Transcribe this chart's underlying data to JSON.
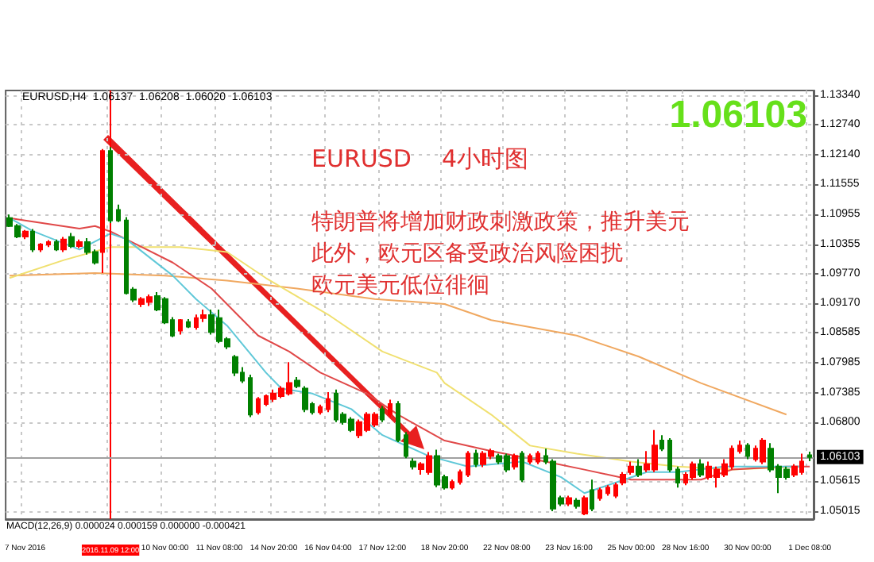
{
  "chart_data": {
    "type": "candlestick",
    "annotations": [
      "EURUSD,H4  1.06137  1.06208  1.06020  1.06103",
      "1.06103",
      "EURUSD    4小时图",
      "特朗普将增加财政刺激政策，推升美元",
      "此外，欧元区备受政治风险困扰",
      "欧元美元低位徘徊",
      "MACD(12,26,9) 0.000024 0.000159 0.000000 -0.000421"
    ],
    "categories": [
      null,
      null,
      "7 Nov 2016",
      null,
      null,
      null,
      null,
      null,
      null,
      null,
      null,
      null,
      null,
      "2016.11.09 12:00",
      null,
      null,
      null,
      null,
      null,
      null,
      "10 Nov 00:00",
      null,
      null,
      null,
      null,
      null,
      null,
      "11 Nov 08:00",
      null,
      null,
      null,
      null,
      null,
      null,
      "14 Nov 20:00",
      null,
      null,
      null,
      null,
      null,
      null,
      "16 Nov 04:00",
      null,
      null,
      null,
      null,
      null,
      null,
      "17 Nov 12:00",
      null,
      null,
      null,
      null,
      null,
      null,
      null,
      "18 Nov 20:00",
      null,
      null,
      null,
      null,
      null,
      null,
      null,
      "22 Nov 08:00",
      null,
      null,
      null,
      null,
      null,
      null,
      null,
      "23 Nov 16:00",
      null,
      null,
      null,
      null,
      null,
      null,
      null,
      "25 Nov 00:00",
      null,
      null,
      null,
      null,
      null,
      null,
      "28 Nov 16:00",
      null,
      null,
      null,
      null,
      null,
      null,
      null,
      "30 Nov 00:00",
      null,
      null,
      null,
      null,
      null,
      null,
      null,
      "1 Dec 08:00"
    ],
    "colors": [
      "#008000",
      "#008000",
      "#ff0000",
      "#008000",
      "#ff0000",
      "#ff0000",
      "#008000",
      "#ff0000",
      "#008000",
      "#ff0000",
      "#008000",
      "#008000",
      "#ff0000",
      "#008000",
      "#008000",
      "#008000",
      "#008000",
      "#ff0000",
      "#ff0000",
      "#008000",
      "#008000",
      "#008000",
      "#ff0000",
      "#008000",
      "#ff0000",
      "#ff0000",
      "#008000",
      "#008000",
      "#008000",
      "#008000",
      "#008000",
      "#008000",
      "#ff0000",
      "#ff0000",
      "#ff0000",
      "#ff0000",
      "#ff0000",
      "#008000",
      "#008000",
      "#008000",
      "#ff0000",
      "#ff0000",
      "#008000",
      "#008000",
      "#008000",
      "#ff0000",
      "#ff0000",
      "#ff0000",
      "#008000",
      "#ff0000",
      "#008000",
      "#008000",
      "#008000",
      "#ff0000",
      "#ff0000",
      "#008000",
      "#008000",
      "#ff0000",
      "#ff0000",
      "#ff0000",
      "#008000",
      "#ff0000",
      "#ff0000",
      "#008000",
      "#008000",
      "#ff0000",
      "#008000",
      "#ff0000",
      "#ff0000",
      "#008000",
      "#008000",
      "#008000",
      "#ff0000",
      "#008000",
      "#ff0000",
      "#008000",
      "#ff0000",
      "#ff0000",
      "#ff0000",
      "#ff0000",
      "#ff0000",
      "#008000",
      "#ff0000",
      "#ff0000",
      "#008000",
      "#008000",
      "#008000",
      "#ff0000",
      "#ff0000",
      "#008000",
      "#ff0000",
      "#ff0000",
      "#ff0000",
      "#ff0000",
      "#ff0000",
      "#008000",
      "#ff0000",
      "#ff0000",
      "#008000",
      "#008000",
      "#008000",
      "#ff0000",
      "#ff0000",
      "#008000"
    ],
    "ohlc": [
      [
        1.1088,
        1.1095,
        1.107,
        1.1072
      ],
      [
        1.1072,
        1.1076,
        1.1048,
        1.1051
      ],
      [
        1.1051,
        1.1064,
        1.1046,
        1.1061
      ],
      [
        1.1061,
        1.1066,
        1.102,
        1.1025
      ],
      [
        1.1025,
        1.1038,
        1.102,
        1.1035
      ],
      [
        1.1035,
        1.1044,
        1.103,
        1.104
      ],
      [
        1.104,
        1.1045,
        1.1022,
        1.1025
      ],
      [
        1.1025,
        1.105,
        1.102,
        1.1045
      ],
      [
        1.105,
        1.1058,
        1.1028,
        1.1032
      ],
      [
        1.1032,
        1.1045,
        1.1028,
        1.104
      ],
      [
        1.104,
        1.1048,
        1.1015,
        1.102
      ],
      [
        1.102,
        1.1025,
        1.0995,
        1.0999
      ],
      [
        1.102,
        1.1226,
        1.0978,
        1.1222
      ],
      [
        1.1222,
        1.123,
        1.1078,
        1.1083
      ],
      [
        1.1104,
        1.1115,
        1.108,
        1.1083
      ],
      [
        1.1083,
        1.109,
        1.0935,
        1.0938
      ],
      [
        1.0945,
        1.095,
        1.092,
        1.0925
      ],
      [
        1.0916,
        1.093,
        1.091,
        1.0926
      ],
      [
        1.092,
        1.0935,
        1.0912,
        1.093
      ],
      [
        1.0932,
        1.094,
        1.0902,
        1.0905
      ],
      [
        1.0926,
        1.093,
        1.0876,
        1.0879
      ],
      [
        1.0884,
        1.089,
        1.085,
        1.0853
      ],
      [
        1.0863,
        1.0886,
        1.0855,
        1.0884
      ],
      [
        1.088,
        1.0886,
        1.0868,
        1.0871
      ],
      [
        1.087,
        1.0895,
        1.0865,
        1.0888
      ],
      [
        1.0888,
        1.0905,
        1.088,
        1.0894
      ],
      [
        1.0894,
        1.0905,
        1.0855,
        1.086
      ],
      [
        1.0888,
        1.0905,
        1.0838,
        1.0842
      ],
      [
        1.0846,
        1.085,
        1.0826,
        1.0831
      ],
      [
        1.081,
        1.0814,
        1.0772,
        1.0779
      ],
      [
        1.0779,
        1.079,
        1.0758,
        1.0763
      ],
      [
        1.0768,
        1.0775,
        1.069,
        1.0695
      ],
      [
        1.07,
        1.073,
        1.0695,
        1.0726
      ],
      [
        1.0716,
        1.0735,
        1.0712,
        1.0732
      ],
      [
        1.0726,
        1.0745,
        1.072,
        1.0737
      ],
      [
        1.0732,
        1.0752,
        1.0728,
        1.0747
      ],
      [
        1.0737,
        1.08,
        1.0733,
        1.0758
      ],
      [
        1.0763,
        1.077,
        1.0748,
        1.0752
      ],
      [
        1.0747,
        1.0752,
        1.07,
        1.0706
      ],
      [
        1.0716,
        1.072,
        1.0695,
        1.07
      ],
      [
        1.07,
        1.0715,
        1.0695,
        1.071
      ],
      [
        1.0706,
        1.074,
        1.07,
        1.0726
      ],
      [
        1.0737,
        1.0745,
        1.068,
        1.0685
      ],
      [
        1.0695,
        1.07,
        1.0675,
        1.068
      ],
      [
        1.0685,
        1.069,
        1.066,
        1.0664
      ],
      [
        1.0654,
        1.0685,
        1.0648,
        1.068
      ],
      [
        1.0664,
        1.07,
        1.066,
        1.0695
      ],
      [
        1.0675,
        1.07,
        1.067,
        1.0695
      ],
      [
        1.0706,
        1.0712,
        1.068,
        1.0685
      ],
      [
        1.0695,
        1.0725,
        1.069,
        1.0716
      ],
      [
        1.0716,
        1.0722,
        1.064,
        1.0644
      ],
      [
        1.0654,
        1.066,
        1.0608,
        1.0612
      ],
      [
        1.0601,
        1.0608,
        1.0585,
        1.0591
      ],
      [
        1.0586,
        1.06,
        1.0575,
        1.0596
      ],
      [
        1.058,
        1.062,
        1.0575,
        1.0612
      ],
      [
        1.0612,
        1.0625,
        1.055,
        1.0555
      ],
      [
        1.057,
        1.0575,
        1.0545,
        1.0549
      ],
      [
        1.0549,
        1.0565,
        1.0545,
        1.056
      ],
      [
        1.056,
        1.0585,
        1.0555,
        1.058
      ],
      [
        1.0575,
        1.0622,
        1.057,
        1.0617
      ],
      [
        1.0617,
        1.0625,
        1.059,
        1.0596
      ],
      [
        1.0596,
        1.0622,
        1.059,
        1.0617
      ],
      [
        1.0612,
        1.0627,
        1.0606,
        1.0622
      ],
      [
        1.0612,
        1.0617,
        1.0596,
        1.0601
      ],
      [
        1.0612,
        1.0617,
        1.058,
        1.0585
      ],
      [
        1.0591,
        1.0617,
        1.0585,
        1.0612
      ],
      [
        1.0617,
        1.0622,
        1.056,
        1.0565
      ],
      [
        1.0601,
        1.0617,
        1.0596,
        1.0612
      ],
      [
        1.0601,
        1.0622,
        1.0596,
        1.0617
      ],
      [
        1.0612,
        1.0627,
        1.0596,
        1.0601
      ],
      [
        1.0601,
        1.0606,
        1.0502,
        1.0507
      ],
      [
        1.0528,
        1.0533,
        1.0512,
        1.0517
      ],
      [
        1.0517,
        1.0533,
        1.0512,
        1.0528
      ],
      [
        1.0523,
        1.0528,
        1.0507,
        1.0512
      ],
      [
        1.0497,
        1.0533,
        1.0494,
        1.0528
      ],
      [
        1.0544,
        1.0565,
        1.0502,
        1.0507
      ],
      [
        1.0528,
        1.0549,
        1.0523,
        1.0544
      ],
      [
        1.0538,
        1.0554,
        1.0533,
        1.0549
      ],
      [
        1.0533,
        1.0559,
        1.0528,
        1.0554
      ],
      [
        1.0559,
        1.058,
        1.0554,
        1.0575
      ],
      [
        1.058,
        1.0601,
        1.0575,
        1.0591
      ],
      [
        1.0591,
        1.0606,
        1.057,
        1.0575
      ],
      [
        1.0585,
        1.0622,
        1.058,
        1.0596
      ],
      [
        1.0585,
        1.0664,
        1.058,
        1.0633
      ],
      [
        1.0643,
        1.0654,
        1.0622,
        1.0627
      ],
      [
        1.0643,
        1.0648,
        1.058,
        1.0585
      ],
      [
        1.0585,
        1.0591,
        1.0549,
        1.0559
      ],
      [
        1.0559,
        1.058,
        1.0554,
        1.0575
      ],
      [
        1.057,
        1.0601,
        1.0565,
        1.0596
      ],
      [
        1.0596,
        1.0606,
        1.057,
        1.0575
      ],
      [
        1.057,
        1.0601,
        1.0565,
        1.0591
      ],
      [
        1.057,
        1.0591,
        1.0549,
        1.0585
      ],
      [
        1.0575,
        1.0606,
        1.057,
        1.0596
      ],
      [
        1.0591,
        1.0633,
        1.0585,
        1.0627
      ],
      [
        1.0622,
        1.0643,
        1.0617,
        1.0633
      ],
      [
        1.0633,
        1.0638,
        1.0606,
        1.0612
      ],
      [
        1.0606,
        1.0633,
        1.0601,
        1.0627
      ],
      [
        1.0601,
        1.0648,
        1.0596,
        1.0643
      ],
      [
        1.0627,
        1.0638,
        1.058,
        1.0585
      ],
      [
        1.0591,
        1.0596,
        1.0538,
        1.057
      ],
      [
        1.0585,
        1.0591,
        1.0565,
        1.057
      ],
      [
        1.0575,
        1.0596,
        1.057,
        1.0591
      ],
      [
        1.058,
        1.0617,
        1.0575,
        1.0601
      ],
      [
        1.06137,
        1.06208,
        1.0602,
        1.06103
      ]
    ],
    "series": [
      {
        "type": "line",
        "color": "#f0a860",
        "values": [
          1.0973,
          null,
          null,
          null,
          null,
          null,
          null,
          null,
          null,
          null,
          null,
          1.0978,
          null,
          null,
          null,
          null,
          null,
          null,
          null,
          null,
          1.0973,
          null,
          null,
          null,
          null,
          null,
          null,
          null,
          1.0963,
          null,
          null,
          null,
          null,
          null,
          null,
          null,
          null,
          1.0947,
          null,
          null,
          null,
          null,
          null,
          null,
          null,
          null,
          null,
          1.0926,
          null,
          null,
          null,
          null,
          null,
          null,
          null,
          null,
          1.0916,
          null,
          null,
          null,
          null,
          null,
          1.0884,
          null,
          null,
          null,
          null,
          null,
          null,
          null,
          null,
          null,
          null,
          1.0853,
          null,
          null,
          null,
          null,
          null,
          null,
          null,
          1.0811,
          null,
          null,
          null,
          null,
          null,
          null,
          null,
          1.0758,
          null,
          null,
          null,
          null,
          null,
          null,
          null,
          null,
          null,
          null,
          1.0695,
          null,
          null,
          null
        ]
      },
      {
        "type": "line",
        "color": "#f0e070",
        "values": [
          1.0968,
          null,
          null,
          null,
          null,
          null,
          null,
          1.1004,
          null,
          null,
          null,
          null,
          null,
          1.103,
          null,
          null,
          null,
          null,
          null,
          null,
          null,
          null,
          1.103,
          null,
          null,
          null,
          null,
          null,
          1.102,
          null,
          null,
          null,
          null,
          1.0968,
          null,
          null,
          null,
          null,
          null,
          null,
          null,
          1.0895,
          null,
          null,
          null,
          null,
          null,
          null,
          1.0821,
          null,
          null,
          null,
          null,
          null,
          null,
          1.0779,
          1.0758,
          null,
          null,
          null,
          null,
          null,
          1.0695,
          null,
          null,
          null,
          null,
          1.0633,
          null,
          null,
          null,
          null,
          null,
          1.0617,
          null,
          null,
          null,
          null,
          null,
          null,
          1.0601,
          null,
          null,
          null,
          null,
          null,
          1.0591,
          null,
          null,
          null,
          null,
          null,
          null,
          1.0585,
          null,
          null,
          null,
          null,
          null,
          null,
          null,
          null,
          1.0591,
          null
        ]
      },
      {
        "type": "line",
        "color": "#e04848",
        "values": [
          1.1088,
          null,
          1.1083,
          null,
          null,
          null,
          null,
          null,
          null,
          1.1067,
          null,
          1.1072,
          null,
          1.1061,
          null,
          null,
          null,
          1.103,
          null,
          null,
          null,
          1.0999,
          null,
          null,
          null,
          null,
          1.0947,
          null,
          null,
          null,
          null,
          null,
          1.0853,
          null,
          null,
          null,
          1.0821,
          null,
          null,
          null,
          1.0779,
          null,
          null,
          null,
          null,
          null,
          1.0737,
          null,
          null,
          null,
          1.0695,
          null,
          null,
          null,
          null,
          null,
          1.0643,
          null,
          null,
          null,
          null,
          null,
          1.0622,
          null,
          null,
          null,
          null,
          null,
          null,
          1.0601,
          null,
          null,
          null,
          null,
          1.0585,
          null,
          null,
          null,
          null,
          null,
          1.0565,
          null,
          null,
          null,
          1.0565,
          null,
          null,
          null,
          null,
          1.0565,
          null,
          null,
          null,
          1.0585,
          null,
          null,
          null,
          null,
          null,
          null,
          1.0591,
          null,
          null,
          1.0591
        ]
      },
      {
        "type": "line",
        "color": "#60c8d8",
        "values": [
          1.1088,
          null,
          null,
          1.1062,
          null,
          null,
          null,
          null,
          null,
          1.1025,
          null,
          null,
          null,
          1.1057,
          null,
          1.1046,
          null,
          null,
          null,
          null,
          null,
          1.0973,
          null,
          null,
          1.0926,
          null,
          null,
          null,
          1.0873,
          null,
          null,
          null,
          null,
          1.0779,
          null,
          1.0747,
          null,
          null,
          null,
          1.0737,
          null,
          null,
          null,
          null,
          1.0706,
          null,
          null,
          null,
          1.0654,
          null,
          null,
          null,
          null,
          null,
          1.0612,
          null,
          null,
          null,
          null,
          1.0591,
          null,
          null,
          null,
          null,
          null,
          null,
          1.0601,
          null,
          null,
          null,
          null,
          1.057,
          null,
          null,
          1.0538,
          null,
          null,
          null,
          1.0559,
          null,
          null,
          null,
          1.058,
          null,
          null,
          null,
          1.058,
          null,
          null,
          null,
          null,
          null,
          1.0591,
          null,
          null,
          null,
          null,
          1.0591,
          null,
          null,
          null,
          null,
          1.0591,
          null
        ]
      }
    ],
    "ylim": [
      1.0486,
      1.1343
    ],
    "yticks": [
      {
        "value": 1.1334,
        "label": "1.13340"
      },
      {
        "value": 1.1274,
        "label": "1.12740"
      },
      {
        "value": 1.1214,
        "label": "1.12140"
      },
      {
        "value": 1.11555,
        "label": "1.11555"
      },
      {
        "value": 1.10955,
        "label": "1.10955"
      },
      {
        "value": 1.10355,
        "label": "1.10355"
      },
      {
        "value": 1.0977,
        "label": "1.09770"
      },
      {
        "value": 1.0917,
        "label": "1.09170"
      },
      {
        "value": 1.08585,
        "label": "1.08585"
      },
      {
        "value": 1.07985,
        "label": "1.07985"
      },
      {
        "value": 1.07385,
        "label": "1.07385"
      },
      {
        "value": 1.068,
        "label": "1.06800"
      },
      {
        "value": 1.05615,
        "label": "1.05615"
      },
      {
        "value": 1.05015,
        "label": "1.05015"
      }
    ],
    "ref_lines": [
      {
        "axis": "x",
        "value": "2016.11.09 12:00",
        "color": "#ff0000"
      },
      {
        "axis": "y",
        "value": 1.06103,
        "label": "1.06103",
        "color": "#a0a0a0"
      }
    ],
    "grid": true
  }
}
